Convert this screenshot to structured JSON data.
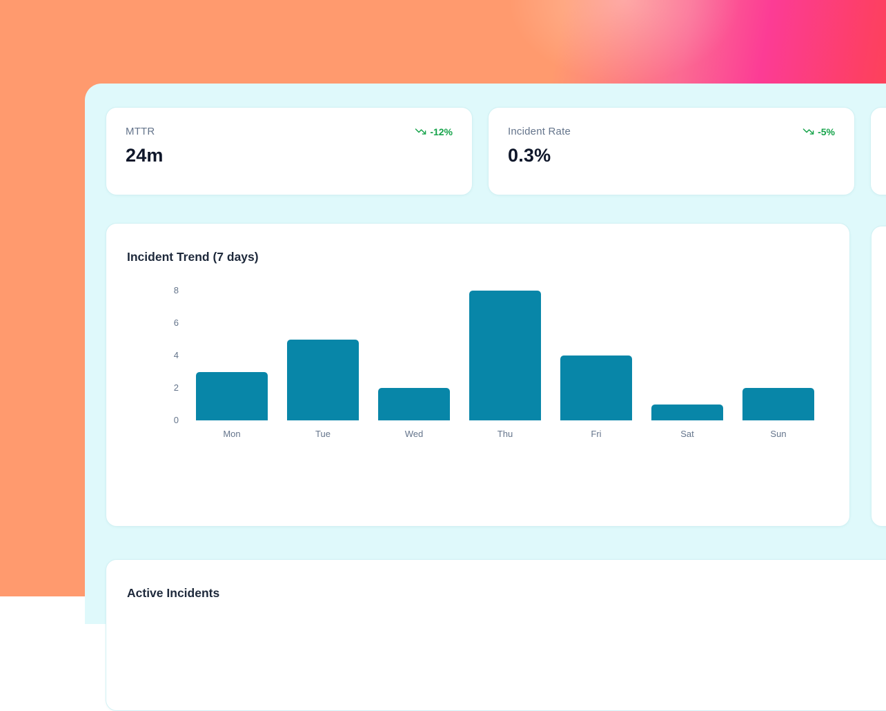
{
  "theme": {
    "bg_gradient": [
      "#ff9a6e",
      "#fc3c95",
      "#fe4747"
    ],
    "panel_bg": "#dff9fb",
    "card_bg": "#ffffff",
    "label_color": "#64748b",
    "value_color": "#0f172a",
    "title_color": "#1e293b",
    "trend_down_color": "#16a34a",
    "bar_color": "#0886a8"
  },
  "stat_cards": [
    {
      "label": "MTTR",
      "value": "24m",
      "trend": "-12%",
      "trend_direction": "down",
      "icon": "trending-down-icon"
    },
    {
      "label": "Incident Rate",
      "value": "0.3%",
      "trend": "-5%",
      "trend_direction": "down",
      "icon": "trending-down-icon"
    }
  ],
  "chart_card": {
    "title": "Incident Trend (7 days)"
  },
  "chart_data": {
    "type": "bar",
    "title": "Incident Trend (7 days)",
    "categories": [
      "Mon",
      "Tue",
      "Wed",
      "Thu",
      "Fri",
      "Sat",
      "Sun"
    ],
    "values": [
      3,
      5,
      2,
      8,
      4,
      1,
      2
    ],
    "yticks": [
      0,
      2,
      4,
      6,
      8
    ],
    "ylim": [
      0,
      8.2
    ],
    "xlabel": "",
    "ylabel": "",
    "grid": false,
    "legend": false,
    "bar_color": "#0886a8"
  },
  "active_incidents": {
    "title": "Active Incidents"
  }
}
